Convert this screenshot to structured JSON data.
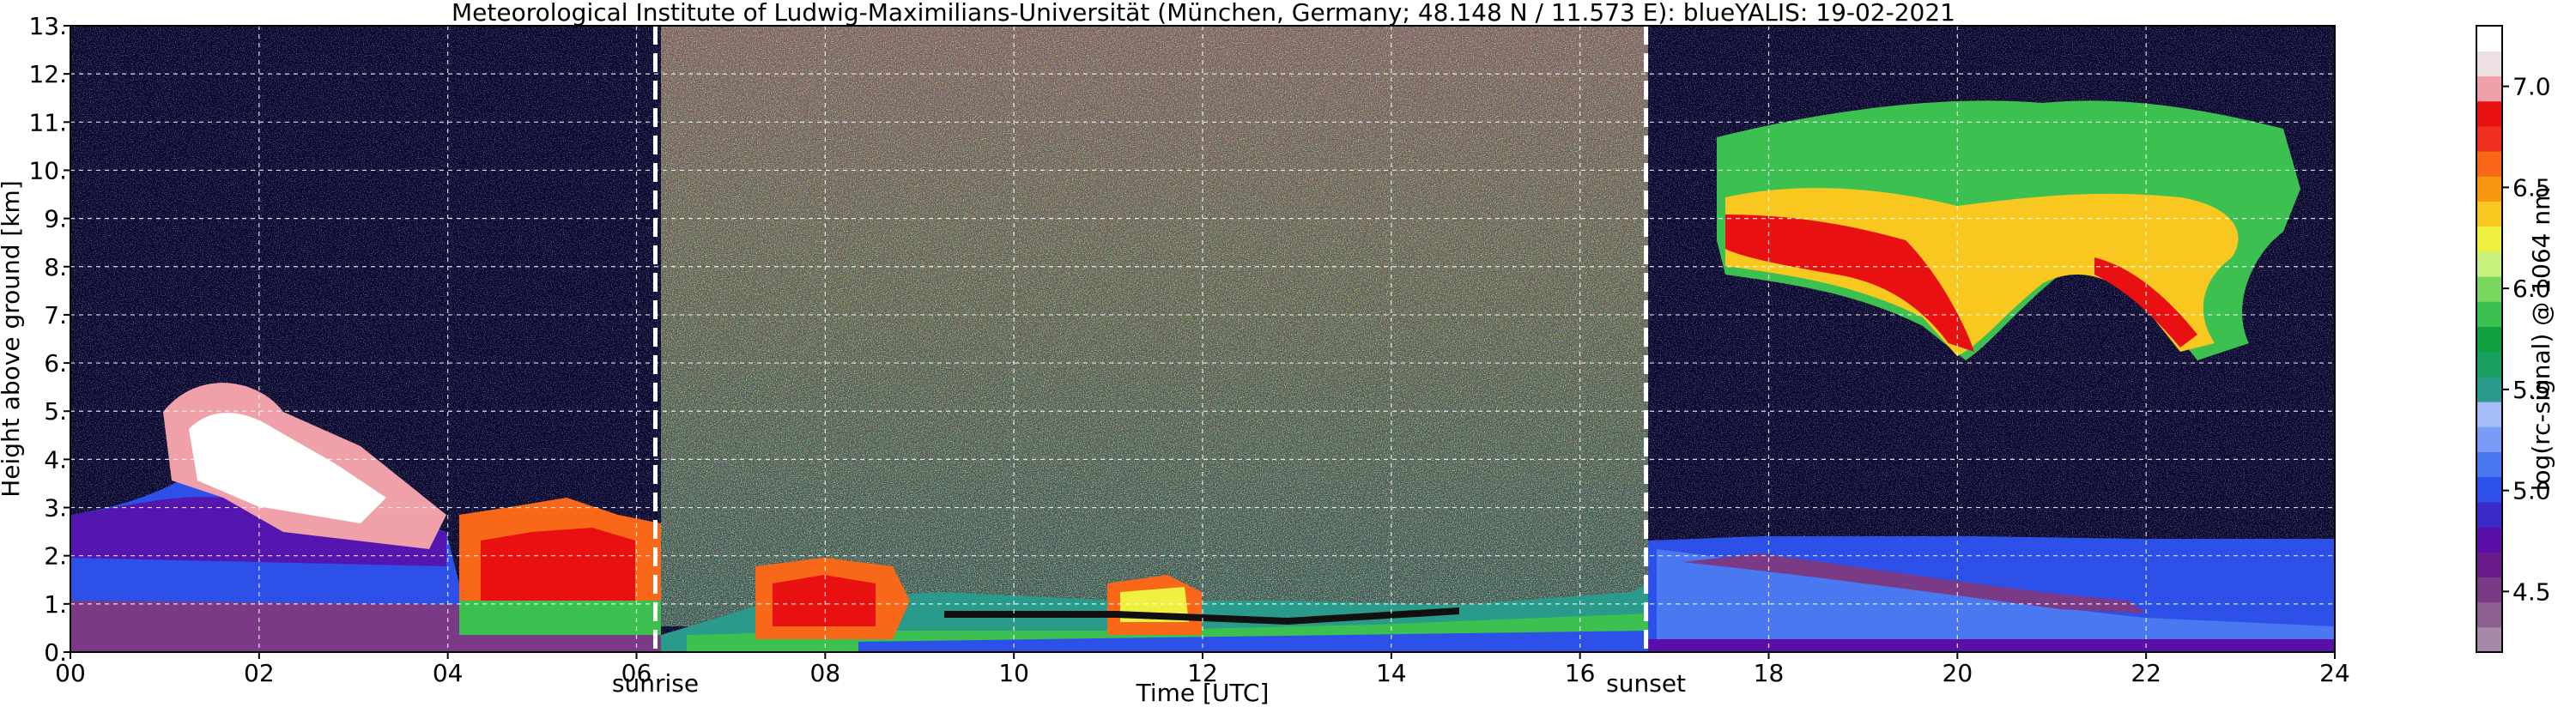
{
  "chart_data": {
    "type": "heatmap",
    "title": "Meteorological Institute of Ludwig-Maximilians-Universität (München, Germany; 48.148 N / 11.573 E):    blueYALIS: 19-02-2021",
    "xlabel": "Time [UTC]",
    "ylabel": "Height above ground [km]",
    "xlim": [
      0,
      24
    ],
    "ylim": [
      0,
      13
    ],
    "x_ticks": [
      {
        "value": 0,
        "label": "00"
      },
      {
        "value": 2,
        "label": "02"
      },
      {
        "value": 4,
        "label": "04"
      },
      {
        "value": 6,
        "label": "06"
      },
      {
        "value": 8,
        "label": "08"
      },
      {
        "value": 10,
        "label": "10"
      },
      {
        "value": 12,
        "label": "12"
      },
      {
        "value": 14,
        "label": "14"
      },
      {
        "value": 16,
        "label": "16"
      },
      {
        "value": 18,
        "label": "18"
      },
      {
        "value": 20,
        "label": "20"
      },
      {
        "value": 22,
        "label": "22"
      },
      {
        "value": 24,
        "label": "24"
      }
    ],
    "y_ticks": [
      {
        "value": 0,
        "label": "0."
      },
      {
        "value": 1,
        "label": "1."
      },
      {
        "value": 2,
        "label": "2."
      },
      {
        "value": 3,
        "label": "3."
      },
      {
        "value": 4,
        "label": "4."
      },
      {
        "value": 5,
        "label": "5."
      },
      {
        "value": 6,
        "label": "6."
      },
      {
        "value": 7,
        "label": "7."
      },
      {
        "value": 8,
        "label": "8."
      },
      {
        "value": 9,
        "label": "9."
      },
      {
        "value": 10,
        "label": "10."
      },
      {
        "value": 11,
        "label": "11."
      },
      {
        "value": 12,
        "label": "12."
      },
      {
        "value": 13,
        "label": "13."
      }
    ],
    "grid": true,
    "markers": [
      {
        "label": "sunrise",
        "x": 6.2
      },
      {
        "label": "sunset",
        "x": 16.7
      }
    ],
    "colorbar": {
      "label": "log(rc-signal) @ 1064 nm",
      "range": [
        4.2,
        7.3
      ],
      "ticks": [
        {
          "value": 4.5,
          "label": "4.5"
        },
        {
          "value": 5.0,
          "label": "5.0"
        },
        {
          "value": 5.5,
          "label": "5.5"
        },
        {
          "value": 6.0,
          "label": "6.0"
        },
        {
          "value": 6.5,
          "label": "6.5"
        },
        {
          "value": 7.0,
          "label": "7.0"
        }
      ],
      "colors": [
        "#a48aa6",
        "#8c5f90",
        "#7a3a85",
        "#6a1a8a",
        "#5a10a8",
        "#3a2ac8",
        "#2c50e8",
        "#4a78f0",
        "#7a9cf6",
        "#a6bcf8",
        "#2a9a8a",
        "#1aa060",
        "#10a040",
        "#3cc050",
        "#7ad860",
        "#c8f07c",
        "#f0f040",
        "#f8c820",
        "#f89810",
        "#f86818",
        "#f03020",
        "#e81010",
        "#f0a0a8",
        "#ece0e2",
        "#ffffff"
      ],
      "background_color": "#0a0830"
    }
  }
}
